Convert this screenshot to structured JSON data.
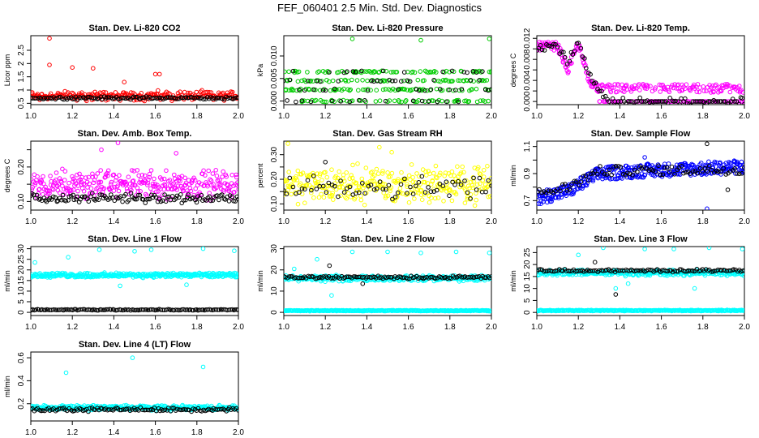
{
  "figure": {
    "title": "FEF_060401  2.5 Min. Std. Dev. Diagnostics"
  },
  "chart_data": [
    {
      "type": "scatter",
      "title": "Stan. Dev. Li-820 CO2",
      "xlabel": "",
      "ylabel": "Licor ppm",
      "xlim": [
        1.0,
        2.0
      ],
      "ylim": [
        0.45,
        3.05
      ],
      "xticks": [
        1.0,
        1.2,
        1.4,
        1.6,
        1.8,
        2.0
      ],
      "yticks": [
        0.5,
        1.0,
        1.5,
        2.0,
        2.5
      ],
      "grid": false,
      "series": [
        {
          "color": "#ff0000",
          "base": 0.78,
          "spread": 0.22,
          "count": 240,
          "outliers": [
            [
              1.09,
              2.95
            ],
            [
              1.09,
              1.95
            ],
            [
              1.2,
              1.85
            ],
            [
              1.3,
              1.82
            ],
            [
              1.6,
              1.6
            ],
            [
              1.62,
              1.6
            ],
            [
              1.45,
              1.3
            ]
          ]
        },
        {
          "color": "#000000",
          "base": 0.7,
          "spread": 0.06,
          "count": 120,
          "outliers": []
        }
      ]
    },
    {
      "type": "scatter",
      "title": "Stan. Dev. Li-820 Pressure",
      "xlabel": "",
      "ylabel": "kPa",
      "xlim": [
        1.0,
        2.0
      ],
      "ylim": [
        -0.0008,
        0.0145
      ],
      "xticks": [
        1.0,
        1.2,
        1.4,
        1.6,
        1.8,
        2.0
      ],
      "yticks": [
        0.0,
        0.005,
        0.01
      ],
      "ytick_labels": [
        "0.000",
        "0.005",
        "0.010"
      ],
      "grid": false,
      "series": [
        {
          "color": "#00cc00",
          "levels": [
            0.0,
            0.0025,
            0.0045,
            0.0065
          ],
          "count": 260,
          "outliers": [
            [
              1.33,
              0.0138
            ],
            [
              1.66,
              0.0135
            ],
            [
              1.99,
              0.0138
            ]
          ]
        },
        {
          "color": "#000000",
          "levels": [
            0.0,
            0.0025,
            0.0045,
            0.0065
          ],
          "count": 70,
          "outliers": []
        }
      ]
    },
    {
      "type": "scatter",
      "title": "Stan. Dev. Li-820 Temp.",
      "xlabel": "",
      "ylabel": "degrees C",
      "xlim": [
        1.0,
        2.0
      ],
      "ylim": [
        -0.0006,
        0.0125
      ],
      "xticks": [
        1.0,
        1.2,
        1.4,
        1.6,
        1.8,
        2.0
      ],
      "yticks": [
        0.0,
        0.002,
        0.004,
        0.006,
        0.008,
        0.01,
        0.012
      ],
      "ytick_labels": [
        "0.000",
        "",
        "0.004",
        "",
        "0.008",
        "",
        "0.012"
      ],
      "grid": false,
      "series": [
        {
          "color": "#ff00ff",
          "profile": [
            [
              1.0,
              0.0105
            ],
            [
              1.1,
              0.0105
            ],
            [
              1.15,
              0.006
            ],
            [
              1.2,
              0.011
            ],
            [
              1.25,
              0.004
            ],
            [
              1.3,
              0.0025
            ],
            [
              2.0,
              0.0025
            ]
          ],
          "floor": 0.0,
          "count": 320,
          "outliers": []
        },
        {
          "color": "#000000",
          "profile": [
            [
              1.0,
              0.0105
            ],
            [
              1.1,
              0.0105
            ],
            [
              1.15,
              0.0075
            ],
            [
              1.2,
              0.011
            ],
            [
              1.25,
              0.005
            ],
            [
              1.3,
              0.002
            ],
            [
              1.36,
              0.0
            ],
            [
              2.0,
              0.0
            ]
          ],
          "floor": 0.0,
          "count": 110,
          "outliers": []
        }
      ]
    },
    {
      "type": "scatter",
      "title": "Stan. Dev. Amb. Box Temp.",
      "xlabel": "",
      "ylabel": "degrees C",
      "xlim": [
        1.0,
        2.0
      ],
      "ylim": [
        0.075,
        0.275
      ],
      "xticks": [
        1.0,
        1.2,
        1.4,
        1.6,
        1.8,
        2.0
      ],
      "yticks": [
        0.1,
        0.15,
        0.2,
        0.25
      ],
      "ytick_labels": [
        "0.10",
        "",
        "0.20",
        ""
      ],
      "grid": false,
      "series": [
        {
          "color": "#ff00ff",
          "base": 0.15,
          "spread": 0.05,
          "count": 320,
          "outliers": [
            [
              1.42,
              0.27
            ],
            [
              1.34,
              0.25
            ],
            [
              1.7,
              0.24
            ]
          ]
        },
        {
          "color": "#000000",
          "base": 0.11,
          "spread": 0.015,
          "count": 130,
          "outliers": []
        }
      ]
    },
    {
      "type": "scatter",
      "title": "Stan. Dev. Gas Stream RH",
      "xlabel": "",
      "ylabel": "percent",
      "xlim": [
        1.0,
        2.0
      ],
      "ylim": [
        0.075,
        0.355
      ],
      "xticks": [
        1.0,
        1.2,
        1.4,
        1.6,
        1.8,
        2.0
      ],
      "yticks": [
        0.1,
        0.15,
        0.2,
        0.25,
        0.3
      ],
      "ytick_labels": [
        "0.10",
        "",
        "0.20",
        "",
        "0.30"
      ],
      "grid": false,
      "series": [
        {
          "color": "#ffff00",
          "base": 0.18,
          "spread": 0.09,
          "count": 320,
          "outliers": [
            [
              1.02,
              0.345
            ],
            [
              1.46,
              0.33
            ],
            [
              1.52,
              0.31
            ]
          ]
        },
        {
          "color": "#000000",
          "base": 0.17,
          "spread": 0.06,
          "count": 70,
          "outliers": [
            [
              1.2,
              0.27
            ]
          ]
        }
      ]
    },
    {
      "type": "scatter",
      "title": "Stan. Dev. Sample Flow",
      "xlabel": "",
      "ylabel": "ml/min",
      "xlim": [
        1.0,
        2.0
      ],
      "ylim": [
        0.63,
        1.14
      ],
      "xticks": [
        1.0,
        1.2,
        1.4,
        1.6,
        1.8,
        2.0
      ],
      "yticks": [
        0.7,
        0.8,
        0.9,
        1.0,
        1.1
      ],
      "ytick_labels": [
        "0.7",
        "",
        "0.9",
        "",
        "1.1"
      ],
      "grid": false,
      "series": [
        {
          "color": "#0000ff",
          "profile": [
            [
              1.0,
              0.72
            ],
            [
              1.15,
              0.77
            ],
            [
              1.3,
              0.9
            ],
            [
              1.5,
              0.92
            ],
            [
              2.0,
              0.95
            ]
          ],
          "spread": 0.05,
          "count": 380,
          "outliers": [
            [
              1.82,
              0.64
            ],
            [
              1.52,
              1.02
            ]
          ]
        },
        {
          "color": "#000000",
          "profile": [
            [
              1.0,
              0.75
            ],
            [
              1.15,
              0.8
            ],
            [
              1.3,
              0.92
            ],
            [
              2.0,
              0.93
            ]
          ],
          "spread": 0.035,
          "count": 90,
          "outliers": [
            [
              1.82,
              1.12
            ],
            [
              1.92,
              0.78
            ]
          ]
        }
      ]
    },
    {
      "type": "scatter",
      "title": "Stan. Dev. Line 1 Flow",
      "xlabel": "",
      "ylabel": "ml/min",
      "xlim": [
        1.0,
        2.0
      ],
      "ylim": [
        -1.5,
        31.0
      ],
      "xticks": [
        1.0,
        1.2,
        1.4,
        1.6,
        1.8,
        2.0
      ],
      "yticks": [
        0,
        5,
        10,
        15,
        20,
        25,
        30
      ],
      "grid": false,
      "series": [
        {
          "color": "#00ffff",
          "base": 17.5,
          "spread": 1.3,
          "count": 360,
          "outliers": [
            [
              1.02,
              23.5
            ],
            [
              1.18,
              26
            ],
            [
              1.33,
              29.5
            ],
            [
              1.5,
              28.8
            ],
            [
              1.58,
              29.5
            ],
            [
              1.75,
              13
            ],
            [
              1.83,
              30
            ],
            [
              1.98,
              29
            ],
            [
              1.43,
              12.5
            ]
          ]
        },
        {
          "color": "#000000",
          "base": 1.2,
          "spread": 0.3,
          "count": 130,
          "outliers": []
        }
      ]
    },
    {
      "type": "scatter",
      "title": "Stan. Dev. Line 2 Flow",
      "xlabel": "",
      "ylabel": "ml/min",
      "xlim": [
        1.0,
        2.0
      ],
      "ylim": [
        -1.5,
        31.0
      ],
      "xticks": [
        1.0,
        1.2,
        1.4,
        1.6,
        1.8,
        2.0
      ],
      "yticks": [
        0,
        10,
        20,
        30
      ],
      "grid": false,
      "series": [
        {
          "color": "#00ffff",
          "base": 16.0,
          "spread": 1.6,
          "count": 300,
          "outliers": [
            [
              1.05,
              20.5
            ],
            [
              1.16,
              25
            ],
            [
              1.23,
              8
            ],
            [
              1.33,
              28.5
            ],
            [
              1.5,
              28.5
            ],
            [
              1.66,
              28
            ],
            [
              1.83,
              28.5
            ],
            [
              1.99,
              28
            ]
          ]
        },
        {
          "color": "#000000",
          "base": 16.5,
          "spread": 0.8,
          "count": 120,
          "outliers": [
            [
              1.22,
              22
            ],
            [
              1.38,
              13.5
            ]
          ]
        },
        {
          "color": "#00ffff",
          "base": 0.8,
          "spread": 0.25,
          "count": 300,
          "outliers": []
        }
      ]
    },
    {
      "type": "scatter",
      "title": "Stan. Dev. Line 3 Flow",
      "xlabel": "",
      "ylabel": "ml/min",
      "xlim": [
        1.0,
        2.0
      ],
      "ylim": [
        -1.3,
        27.5
      ],
      "xticks": [
        1.0,
        1.2,
        1.4,
        1.6,
        1.8,
        2.0
      ],
      "yticks": [
        0,
        5,
        10,
        15,
        20,
        25
      ],
      "grid": false,
      "series": [
        {
          "color": "#00ffff",
          "base": 16.5,
          "spread": 1.5,
          "count": 300,
          "outliers": [
            [
              1.2,
              24
            ],
            [
              1.32,
              27
            ],
            [
              1.44,
              12
            ],
            [
              1.52,
              26.5
            ],
            [
              1.66,
              26.5
            ],
            [
              1.76,
              10
            ],
            [
              1.83,
              27
            ],
            [
              1.99,
              26.5
            ],
            [
              1.38,
              10
            ]
          ]
        },
        {
          "color": "#000000",
          "base": 17.5,
          "spread": 0.7,
          "count": 120,
          "outliers": [
            [
              1.38,
              7.5
            ],
            [
              1.28,
              21
            ]
          ]
        },
        {
          "color": "#00ffff",
          "base": 0.8,
          "spread": 0.25,
          "count": 300,
          "outliers": []
        }
      ]
    },
    {
      "type": "scatter",
      "title": "Stan. Dev. Line 4 (LT) Flow",
      "xlabel": "",
      "ylabel": "ml/min",
      "xlim": [
        1.0,
        2.0
      ],
      "ylim": [
        0.05,
        0.65
      ],
      "xticks": [
        1.0,
        1.2,
        1.4,
        1.6,
        1.8,
        2.0
      ],
      "yticks": [
        0.2,
        0.4,
        0.6
      ],
      "grid": false,
      "series": [
        {
          "color": "#00ffff",
          "base": 0.165,
          "spread": 0.025,
          "count": 340,
          "outliers": [
            [
              1.17,
              0.47
            ],
            [
              1.49,
              0.6
            ],
            [
              1.83,
              0.52
            ]
          ]
        },
        {
          "color": "#000000",
          "base": 0.15,
          "spread": 0.02,
          "count": 120,
          "outliers": []
        }
      ]
    }
  ]
}
